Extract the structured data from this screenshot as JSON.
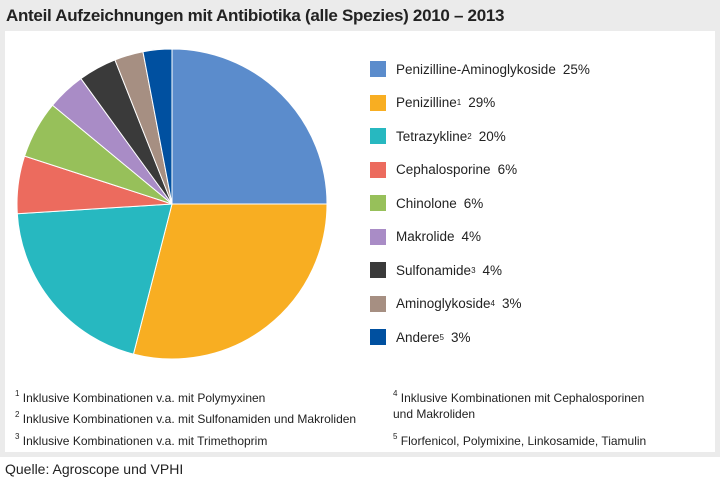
{
  "chart_data": {
    "type": "pie",
    "title": "Anteil Aufzeichnungen mit  Antibiotika (alle Spezies) 2010 – 2013",
    "slices": [
      {
        "label": "Penizilline-Aminoglykoside",
        "sup": "",
        "value": 25,
        "value_label": "25%",
        "color": "#5b8ccc"
      },
      {
        "label": "Penizilline",
        "sup": "1",
        "value": 29,
        "value_label": "29%",
        "color": "#f8ae22"
      },
      {
        "label": "Tetrazykline",
        "sup": "2",
        "value": 20,
        "value_label": "20%",
        "color": "#27b8c0"
      },
      {
        "label": "Cephalosporine",
        "sup": "",
        "value": 6,
        "value_label": "6%",
        "color": "#ec6b5e"
      },
      {
        "label": "Chinolone",
        "sup": "",
        "value": 6,
        "value_label": "6%",
        "color": "#97c05a"
      },
      {
        "label": "Makrolide",
        "sup": "",
        "value": 4,
        "value_label": "4%",
        "color": "#a98cc6"
      },
      {
        "label": "Sulfonamide",
        "sup": "3",
        "value": 4,
        "value_label": "4%",
        "color": "#3a3a3a"
      },
      {
        "label": "Aminoglykoside",
        "sup": "4",
        "value": 3,
        "value_label": "3%",
        "color": "#a68f82"
      },
      {
        "label": "Andere",
        "sup": "5",
        "value": 3,
        "value_label": "3%",
        "color": "#0050a0"
      }
    ],
    "legend_position": "right"
  },
  "footnotes": [
    {
      "num": "1",
      "text": "Inklusive Kombinationen v.a. mit Polymyxinen"
    },
    {
      "num": "2",
      "text": "Inklusive Kombinationen v.a. mit Sulfonamiden und Makroliden"
    },
    {
      "num": "3",
      "text": "Inklusive Kombinationen v.a. mit Trimethoprim"
    },
    {
      "num": "4",
      "text": "Inklusive Kombinationen mit Cephalosporinen und Makroliden"
    },
    {
      "num": "5",
      "text": "Florfenicol, Polymixine, Linkosamide, Tiamulin"
    }
  ],
  "source": "Quelle: Agroscope und VPHI"
}
